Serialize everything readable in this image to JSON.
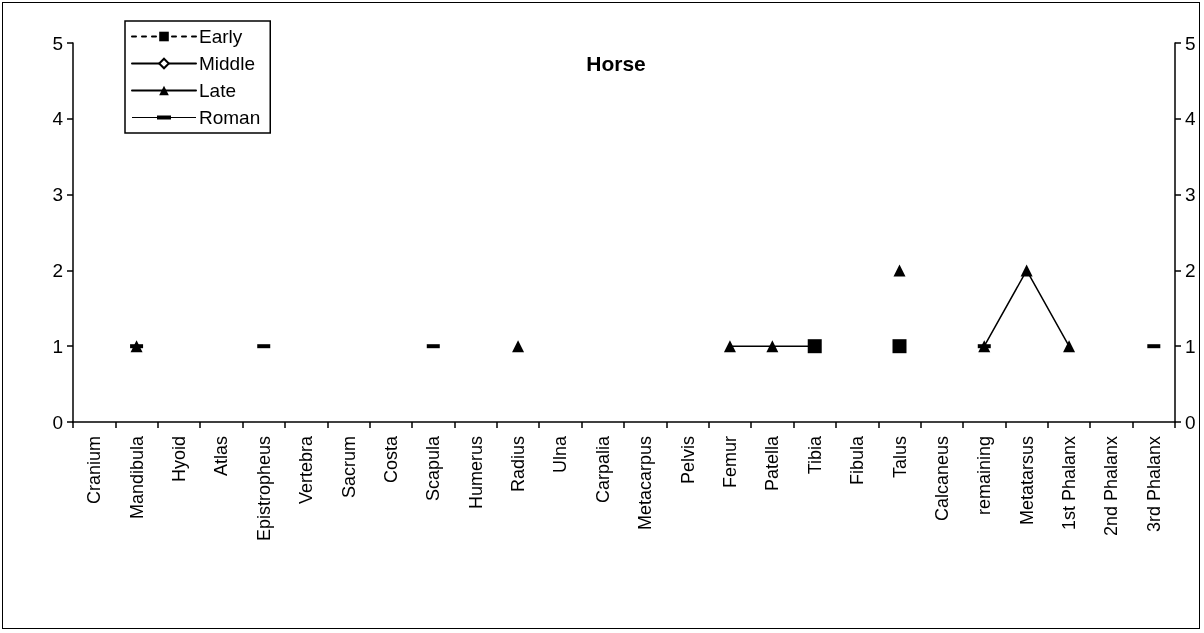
{
  "chart_data": {
    "type": "line",
    "title": "Horse",
    "categories": [
      "Cranium",
      "Mandibula",
      "Hyoid",
      "Atlas",
      "Epistropheus",
      "Vertebra",
      "Sacrum",
      "Costa",
      "Scapula",
      "Humerus",
      "Radius",
      "Ulna",
      "Carpalia",
      "Metacarpus",
      "Pelvis",
      "Femur",
      "Patella",
      "Tibia",
      "Fibula",
      "Talus",
      "Calcaneus",
      "remaining",
      "Metatarsus",
      "1st Phalanx",
      "2nd Phalanx",
      "3rd Phalanx"
    ],
    "series": [
      {
        "name": "Early",
        "color": "#000000",
        "marker": "square",
        "line_style": "dashed",
        "values": [
          null,
          null,
          null,
          null,
          null,
          null,
          null,
          null,
          null,
          null,
          null,
          null,
          null,
          null,
          null,
          null,
          null,
          1,
          null,
          1,
          null,
          null,
          null,
          null,
          null,
          null
        ]
      },
      {
        "name": "Middle",
        "color": "#000000",
        "marker": "diamond",
        "line_style": "solid",
        "values": [
          null,
          null,
          null,
          null,
          null,
          null,
          null,
          null,
          null,
          null,
          null,
          null,
          null,
          null,
          null,
          null,
          null,
          null,
          null,
          null,
          null,
          null,
          null,
          null,
          null,
          null
        ]
      },
      {
        "name": "Late",
        "color": "#000000",
        "marker": "triangle",
        "line_style": "solid",
        "values": [
          null,
          1,
          null,
          null,
          null,
          null,
          null,
          null,
          null,
          null,
          1,
          null,
          null,
          null,
          null,
          1,
          1,
          1,
          null,
          2,
          null,
          1,
          2,
          1,
          null,
          null
        ]
      },
      {
        "name": "Roman",
        "color": "#000000",
        "marker": "square",
        "line_style": "solid",
        "values": [
          null,
          1,
          null,
          null,
          1,
          null,
          null,
          null,
          1,
          null,
          null,
          null,
          null,
          null,
          null,
          null,
          null,
          null,
          null,
          null,
          null,
          1,
          null,
          null,
          null,
          1
        ]
      }
    ],
    "ylim": [
      0,
      5
    ],
    "yticks": [
      0,
      1,
      2,
      3,
      4,
      5
    ],
    "y2lim": [
      0,
      5
    ],
    "y2ticks": [
      0,
      1,
      2,
      3,
      4,
      5
    ],
    "grid": false,
    "legend": "top left"
  }
}
